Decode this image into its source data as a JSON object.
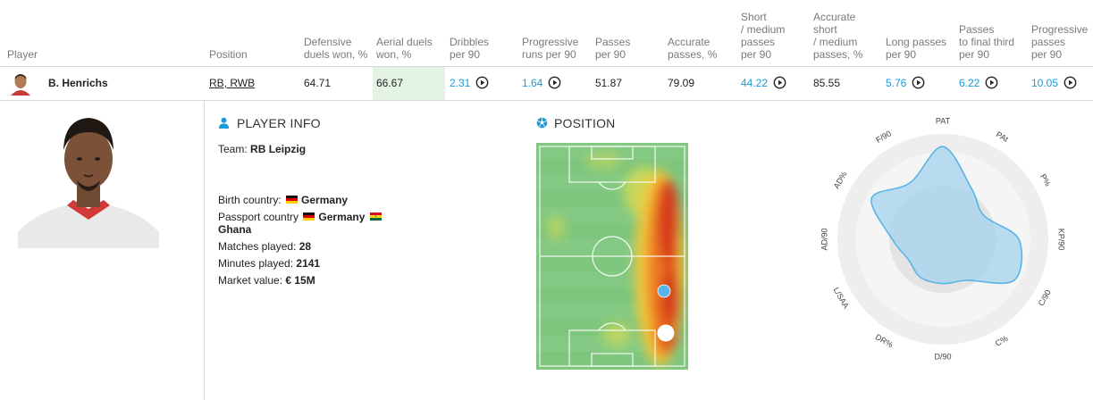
{
  "columns": {
    "player": "Player",
    "position": "Position",
    "col1": [
      "Defensive",
      "duels won, %"
    ],
    "col2": [
      "Aerial duels",
      "won, %"
    ],
    "col3": [
      "Dribbles",
      "per 90"
    ],
    "col4": [
      "Progressive",
      "runs per 90"
    ],
    "col5": [
      "Passes",
      "per 90"
    ],
    "col6": [
      "Accurate",
      "passes, %"
    ],
    "col7": [
      "Short",
      "/ medium",
      "passes",
      "per 90"
    ],
    "col8": [
      "Accurate",
      "short",
      "/ medium",
      "passes, %"
    ],
    "col9": [
      "Long passes",
      "per 90"
    ],
    "col10": [
      "Passes",
      "to final third",
      "per 90"
    ],
    "col11": [
      "Progressive",
      "passes",
      "per 90"
    ]
  },
  "row": {
    "player": "B. Henrichs",
    "position": "RB, RWB",
    "defensive_duels": "64.71",
    "aerial_duels": "66.67",
    "dribbles": "2.31",
    "progressive_runs": "1.64",
    "passes": "51.87",
    "accurate_passes": "79.09",
    "short_medium_passes": "44.22",
    "accurate_short_medium": "85.55",
    "long_passes": "5.76",
    "passes_final_third": "6.22",
    "progressive_passes": "10.05"
  },
  "player_info": {
    "title": "PLAYER INFO",
    "team_label": "Team:",
    "team": "RB Leipzig",
    "birth_label": "Birth country:",
    "birth_country": "Germany",
    "passport_label": "Passport country",
    "passport_1": "Germany",
    "passport_2": "Ghana",
    "matches_label": "Matches played:",
    "matches": "28",
    "minutes_label": "Minutes played:",
    "minutes": "2141",
    "value_label": "Market value:",
    "value": "€ 15M"
  },
  "position_section": {
    "title": "POSITION"
  },
  "radar": {
    "labels": [
      "PAT",
      "PAt",
      "P%",
      "KP/90",
      "C/90",
      "C%",
      "D/90",
      "DR%",
      "L/SAA",
      "AD/90",
      "AD%",
      "F/90"
    ],
    "values": [
      0.88,
      0.55,
      0.45,
      0.72,
      0.78,
      0.45,
      0.42,
      0.42,
      0.38,
      0.48,
      0.78,
      0.62
    ]
  },
  "icons": {
    "player_info": "person-icon",
    "position": "soccer-ball-icon",
    "play": "play-circle-icon"
  },
  "colors": {
    "link": "#1a9ad6",
    "highlight": "#e3f4e4",
    "pitch": "#7ec67e",
    "radar_fill": "#a8d4ee",
    "radar_stroke": "#5ab4e6"
  }
}
